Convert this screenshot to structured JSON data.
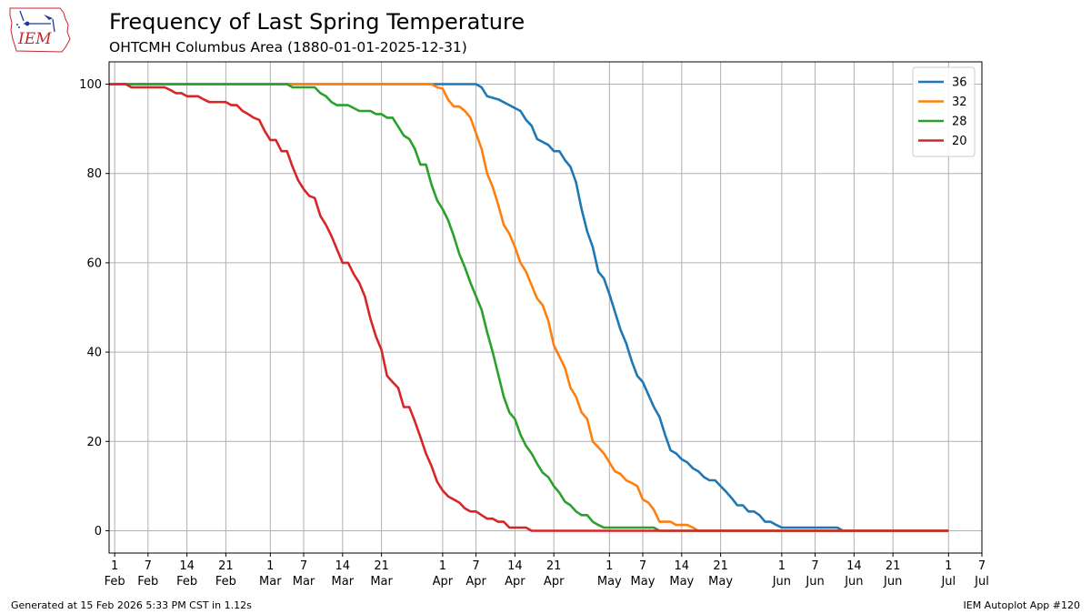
{
  "title": "Frequency of Last Spring Temperature",
  "subtitle": "OHTCMH Columbus Area (1880-01-01-2025-12-31)",
  "footer_left": "Generated at 15 Feb 2026 5:33 PM CST in 1.12s",
  "footer_right": "IEM Autoplot App #120",
  "logo_text": "IEM",
  "chart_data": {
    "type": "line",
    "xlim": [
      0,
      157
    ],
    "ylim": [
      -5,
      105
    ],
    "grid": true,
    "legend_placement": "top-right",
    "yticks": [
      0,
      20,
      40,
      60,
      80,
      100
    ],
    "xticks": [
      {
        "day": 1,
        "label": "1\nFeb"
      },
      {
        "day": 7,
        "label": "7\nFeb"
      },
      {
        "day": 14,
        "label": "14\nFeb"
      },
      {
        "day": 21,
        "label": "21\nFeb"
      },
      {
        "day": 29,
        "label": "1\nMar"
      },
      {
        "day": 35,
        "label": "7\nMar"
      },
      {
        "day": 42,
        "label": "14\nMar"
      },
      {
        "day": 49,
        "label": "21\nMar"
      },
      {
        "day": 60,
        "label": "1\nApr"
      },
      {
        "day": 66,
        "label": "7\nApr"
      },
      {
        "day": 73,
        "label": "14\nApr"
      },
      {
        "day": 80,
        "label": "21\nApr"
      },
      {
        "day": 90,
        "label": "1\nMay"
      },
      {
        "day": 96,
        "label": "7\nMay"
      },
      {
        "day": 103,
        "label": "14\nMay"
      },
      {
        "day": 110,
        "label": "21\nMay"
      },
      {
        "day": 121,
        "label": "1\nJun"
      },
      {
        "day": 127,
        "label": "7\nJun"
      },
      {
        "day": 134,
        "label": "14\nJun"
      },
      {
        "day": 141,
        "label": "21\nJun"
      },
      {
        "day": 151,
        "label": "1\nJul"
      },
      {
        "day": 157,
        "label": "7\nJul"
      }
    ],
    "series": [
      {
        "name": "36",
        "color": "#1f77b4",
        "points": [
          [
            0,
            100
          ],
          [
            66,
            100
          ],
          [
            67,
            99.3
          ],
          [
            68,
            97.3
          ],
          [
            70,
            96.6
          ],
          [
            74,
            94
          ],
          [
            75,
            92
          ],
          [
            76,
            90.7
          ],
          [
            77,
            87.7
          ],
          [
            79,
            86.4
          ],
          [
            80,
            85
          ],
          [
            81,
            85
          ],
          [
            82,
            83
          ],
          [
            83,
            81.5
          ],
          [
            84,
            78
          ],
          [
            85,
            72
          ],
          [
            86,
            67
          ],
          [
            87,
            63.5
          ],
          [
            88,
            58
          ],
          [
            89,
            56.5
          ],
          [
            90,
            53
          ],
          [
            91,
            49
          ],
          [
            92,
            45
          ],
          [
            93,
            42
          ],
          [
            94,
            38
          ],
          [
            95,
            34.7
          ],
          [
            96,
            33.3
          ],
          [
            97,
            30.5
          ],
          [
            98,
            27.7
          ],
          [
            99,
            25.5
          ],
          [
            100,
            21.5
          ],
          [
            101,
            18
          ],
          [
            102,
            17.3
          ],
          [
            103,
            16
          ],
          [
            104,
            15.3
          ],
          [
            105,
            14
          ],
          [
            106,
            13.3
          ],
          [
            107,
            12
          ],
          [
            108,
            11.3
          ],
          [
            109,
            11.3
          ],
          [
            110,
            10
          ],
          [
            111,
            8.7
          ],
          [
            112,
            7.3
          ],
          [
            113,
            5.7
          ],
          [
            114,
            5.7
          ],
          [
            115,
            4.3
          ],
          [
            116,
            4.3
          ],
          [
            117,
            3.5
          ],
          [
            118,
            2
          ],
          [
            119,
            2
          ],
          [
            120,
            1.3
          ],
          [
            121,
            0.7
          ],
          [
            131,
            0.7
          ],
          [
            132,
            0
          ],
          [
            151,
            0
          ]
        ]
      },
      {
        "name": "32",
        "color": "#ff7f0e",
        "points": [
          [
            0,
            100
          ],
          [
            58,
            100
          ],
          [
            59,
            99.3
          ],
          [
            60,
            99
          ],
          [
            61,
            96.5
          ],
          [
            62,
            95
          ],
          [
            63,
            95
          ],
          [
            64,
            94
          ],
          [
            65,
            92.5
          ],
          [
            66,
            89
          ],
          [
            67,
            85.5
          ],
          [
            68,
            80
          ],
          [
            69,
            77
          ],
          [
            70,
            73
          ],
          [
            71,
            68.5
          ],
          [
            72,
            66.5
          ],
          [
            73,
            63.5
          ],
          [
            74,
            60
          ],
          [
            75,
            58
          ],
          [
            76,
            55
          ],
          [
            77,
            52
          ],
          [
            78,
            50.5
          ],
          [
            79,
            47
          ],
          [
            80,
            41.5
          ],
          [
            81,
            39
          ],
          [
            82,
            36.5
          ],
          [
            83,
            32
          ],
          [
            84,
            30
          ],
          [
            85,
            26.5
          ],
          [
            86,
            25
          ],
          [
            87,
            20
          ],
          [
            88,
            18.7
          ],
          [
            89,
            17.3
          ],
          [
            90,
            15.3
          ],
          [
            91,
            13.3
          ],
          [
            92,
            12.7
          ],
          [
            93,
            11.3
          ],
          [
            94,
            10.7
          ],
          [
            95,
            10
          ],
          [
            96,
            7
          ],
          [
            97,
            6.3
          ],
          [
            98,
            4.7
          ],
          [
            99,
            2
          ],
          [
            100,
            2
          ],
          [
            101,
            2
          ],
          [
            102,
            1.3
          ],
          [
            103,
            1.3
          ],
          [
            104,
            1.3
          ],
          [
            105,
            0.7
          ],
          [
            106,
            0
          ],
          [
            151,
            0
          ]
        ]
      },
      {
        "name": "28",
        "color": "#2ca02c",
        "points": [
          [
            0,
            100
          ],
          [
            32,
            100
          ],
          [
            33,
            99.3
          ],
          [
            37,
            99.3
          ],
          [
            38,
            98
          ],
          [
            39,
            97.3
          ],
          [
            40,
            96
          ],
          [
            41,
            95.3
          ],
          [
            43,
            95.3
          ],
          [
            45,
            94
          ],
          [
            47,
            94
          ],
          [
            48,
            93.3
          ],
          [
            49,
            93.3
          ],
          [
            50,
            92.5
          ],
          [
            51,
            92.5
          ],
          [
            52,
            90.5
          ],
          [
            53,
            88.5
          ],
          [
            54,
            87.7
          ],
          [
            55,
            85.5
          ],
          [
            56,
            82
          ],
          [
            57,
            82
          ],
          [
            58,
            77.5
          ],
          [
            59,
            74
          ],
          [
            60,
            72
          ],
          [
            61,
            69.5
          ],
          [
            62,
            66
          ],
          [
            63,
            62
          ],
          [
            64,
            59
          ],
          [
            65,
            55.5
          ],
          [
            66,
            52.5
          ],
          [
            67,
            49.5
          ],
          [
            68,
            44.5
          ],
          [
            69,
            40
          ],
          [
            70,
            35
          ],
          [
            71,
            30
          ],
          [
            72,
            26.5
          ],
          [
            73,
            25
          ],
          [
            74,
            21.5
          ],
          [
            75,
            19
          ],
          [
            76,
            17.3
          ],
          [
            77,
            15
          ],
          [
            78,
            13
          ],
          [
            79,
            12
          ],
          [
            80,
            10
          ],
          [
            81,
            8.5
          ],
          [
            82,
            6.5
          ],
          [
            83,
            5.7
          ],
          [
            84,
            4.3
          ],
          [
            85,
            3.5
          ],
          [
            86,
            3.5
          ],
          [
            87,
            2
          ],
          [
            88,
            1.3
          ],
          [
            89,
            0.7
          ],
          [
            98,
            0.7
          ],
          [
            99,
            0
          ],
          [
            151,
            0
          ]
        ]
      },
      {
        "name": "20",
        "color": "#d62728",
        "points": [
          [
            0,
            100
          ],
          [
            3,
            100
          ],
          [
            4,
            99.3
          ],
          [
            10,
            99.3
          ],
          [
            11,
            98.7
          ],
          [
            12,
            98
          ],
          [
            13,
            98
          ],
          [
            14,
            97.3
          ],
          [
            16,
            97.3
          ],
          [
            17,
            96.6
          ],
          [
            18,
            96
          ],
          [
            21,
            96
          ],
          [
            22,
            95.3
          ],
          [
            23,
            95.3
          ],
          [
            24,
            94
          ],
          [
            25,
            93.3
          ],
          [
            26,
            92.5
          ],
          [
            27,
            92
          ],
          [
            28,
            89.5
          ],
          [
            29,
            87.5
          ],
          [
            30,
            87.5
          ],
          [
            31,
            85
          ],
          [
            32,
            85
          ],
          [
            33,
            81.5
          ],
          [
            34,
            78.5
          ],
          [
            35,
            76.5
          ],
          [
            36,
            75
          ],
          [
            37,
            74.5
          ],
          [
            38,
            70.5
          ],
          [
            39,
            68.5
          ],
          [
            40,
            66
          ],
          [
            41,
            63
          ],
          [
            42,
            60
          ],
          [
            43,
            60
          ],
          [
            44,
            57.5
          ],
          [
            45,
            55.5
          ],
          [
            46,
            52.5
          ],
          [
            47,
            47.5
          ],
          [
            48,
            43.5
          ],
          [
            49,
            40.5
          ],
          [
            50,
            34.7
          ],
          [
            51,
            33.3
          ],
          [
            52,
            32
          ],
          [
            53,
            27.7
          ],
          [
            54,
            27.7
          ],
          [
            55,
            24.5
          ],
          [
            56,
            21
          ],
          [
            57,
            17.3
          ],
          [
            58,
            14.5
          ],
          [
            59,
            11
          ],
          [
            60,
            9
          ],
          [
            61,
            7.7
          ],
          [
            62,
            7
          ],
          [
            63,
            6.3
          ],
          [
            64,
            5
          ],
          [
            65,
            4.3
          ],
          [
            66,
            4.3
          ],
          [
            67,
            3.5
          ],
          [
            68,
            2.7
          ],
          [
            69,
            2.7
          ],
          [
            70,
            2
          ],
          [
            71,
            2
          ],
          [
            72,
            0.7
          ],
          [
            75,
            0.7
          ],
          [
            76,
            0
          ],
          [
            151,
            0
          ]
        ]
      }
    ]
  }
}
